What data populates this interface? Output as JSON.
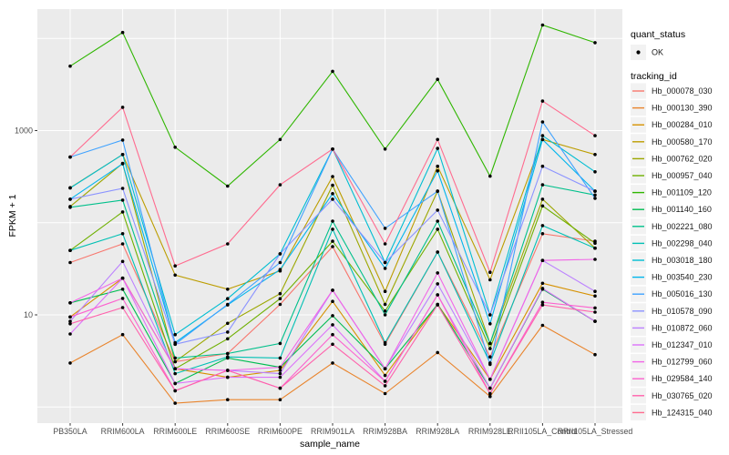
{
  "chart_data": {
    "type": "line",
    "title": "",
    "xlabel": "sample_name",
    "ylabel": "FPKM + 1",
    "yscale": "log10",
    "ylim": [
      0.67,
      21000
    ],
    "y_ticks": [
      {
        "label": "1000",
        "value": 1000
      },
      {
        "label": "10",
        "value": 10
      }
    ],
    "gridline_values": [
      1,
      10,
      100,
      1000,
      10000
    ],
    "panel_bg": "#EBEBEB",
    "grid_color": "#FFFFFF",
    "axis_text_color": "#4D4D4D",
    "point_color": "#000000",
    "legend_position": "right",
    "categories": [
      "PB350LA",
      "RRIM600LA",
      "RRIM600LE",
      "RRIM600SE",
      "RRIM600PE",
      "RRIM901LA",
      "RRIM928BA",
      "RRIM928LA",
      "RRIM928LE",
      "RRII105LA_Control",
      "RRII105LA_Stressed"
    ],
    "series": [
      {
        "name": "Hb_000078_030",
        "color": "#F8766D",
        "values": [
          37,
          59,
          3.1,
          3.8,
          13,
          55,
          4.8,
          48,
          3.5,
          76,
          63
        ]
      },
      {
        "name": "Hb_000130_390",
        "color": "#E9842C",
        "values": [
          3.0,
          6.1,
          1.1,
          1.2,
          1.2,
          3.0,
          1.4,
          3.9,
          1.3,
          7.7,
          3.7
        ]
      },
      {
        "name": "Hb_000284_010",
        "color": "#D69100",
        "values": [
          9.5,
          25,
          2.6,
          2.1,
          2.5,
          14,
          2.2,
          13,
          2.0,
          22,
          16
        ]
      },
      {
        "name": "Hb_000580_170",
        "color": "#BC9D00",
        "values": [
          240,
          550,
          27,
          19,
          30,
          317,
          18,
          410,
          24,
          800,
          550
        ]
      },
      {
        "name": "Hb_000762_020",
        "color": "#9CA700",
        "values": [
          150,
          440,
          3.1,
          8.1,
          17,
          255,
          13,
          220,
          4.9,
          180,
          53
        ]
      },
      {
        "name": "Hb_000957_040",
        "color": "#6FB000",
        "values": [
          50,
          131,
          2.6,
          5.5,
          15,
          63,
          11,
          85,
          4.3,
          152,
          60
        ]
      },
      {
        "name": "Hb_001109_120",
        "color": "#2FB600",
        "values": [
          5000,
          11600,
          660,
          250,
          800,
          4400,
          630,
          3600,
          320,
          14000,
          9000
        ]
      },
      {
        "name": "Hb_001140_160",
        "color": "#00BC51",
        "values": [
          13.5,
          19,
          1.8,
          3.4,
          2.7,
          9.8,
          2.6,
          13,
          1.6,
          19,
          8.5
        ]
      },
      {
        "name": "Hb_002221_080",
        "color": "#00C08B",
        "values": [
          147,
          176,
          3.4,
          3.8,
          4.9,
          104,
          10,
          104,
          4.9,
          258,
          200
        ]
      },
      {
        "name": "Hb_002298_040",
        "color": "#00C0B4",
        "values": [
          50,
          76,
          2.3,
          3.5,
          3.4,
          85,
          5.0,
          48,
          3.0,
          93,
          53
        ]
      },
      {
        "name": "Hb_003018_180",
        "color": "#00BDD2",
        "values": [
          238,
          550,
          6.1,
          15,
          46,
          630,
          37,
          640,
          10,
          880,
          357
        ]
      },
      {
        "name": "Hb_003540_230",
        "color": "#00B5EC",
        "values": [
          180,
          437,
          5.0,
          12.8,
          31,
          207,
          32,
          365,
          8.0,
          800,
          220
        ]
      },
      {
        "name": "Hb_005016_130",
        "color": "#3FA2FF",
        "values": [
          516,
          790,
          4.8,
          13,
          37,
          630,
          87,
          220,
          2.9,
          1240,
          184
        ]
      },
      {
        "name": "Hb_010578_090",
        "color": "#8B93FF",
        "values": [
          180,
          236,
          4.8,
          6.5,
          46,
          180,
          37,
          137,
          10,
          410,
          220
        ]
      },
      {
        "name": "Hb_010872_060",
        "color": "#BC81FF",
        "values": [
          8.5,
          38,
          2.6,
          2.5,
          2.3,
          18.5,
          2.6,
          21.7,
          2.0,
          39,
          18
        ]
      },
      {
        "name": "Hb_012347_010",
        "color": "#DC71FA",
        "values": [
          6.2,
          25,
          1.8,
          2.1,
          2.1,
          7.8,
          1.9,
          16.5,
          1.6,
          19.4,
          8.5
        ]
      },
      {
        "name": "Hb_012799_060",
        "color": "#F265E7",
        "values": [
          13.5,
          25,
          2.6,
          2.5,
          2.7,
          18.5,
          2.6,
          28.5,
          2.0,
          39,
          40
        ]
      },
      {
        "name": "Hb_029584_140",
        "color": "#FC61CF",
        "values": [
          9.5,
          15.1,
          1.5,
          2.5,
          1.6,
          6.1,
          1.9,
          16.5,
          1.4,
          13.7,
          11.9
        ]
      },
      {
        "name": "Hb_030765_020",
        "color": "#FF62AC",
        "values": [
          8.0,
          12,
          1.5,
          2.5,
          1.6,
          4.8,
          1.7,
          12.8,
          1.4,
          12.8,
          10.7
        ]
      },
      {
        "name": "Hb_124315_040",
        "color": "#FF6B8F",
        "values": [
          516,
          1790,
          34,
          59,
          258,
          630,
          59,
          800,
          29,
          2090,
          880
        ]
      }
    ]
  },
  "legend": {
    "quant_status_title": "quant_status",
    "quant_status_items": [
      {
        "label": "OK"
      }
    ],
    "tracking_id_title": "tracking_id",
    "key_bg": "#F2F2F2"
  }
}
